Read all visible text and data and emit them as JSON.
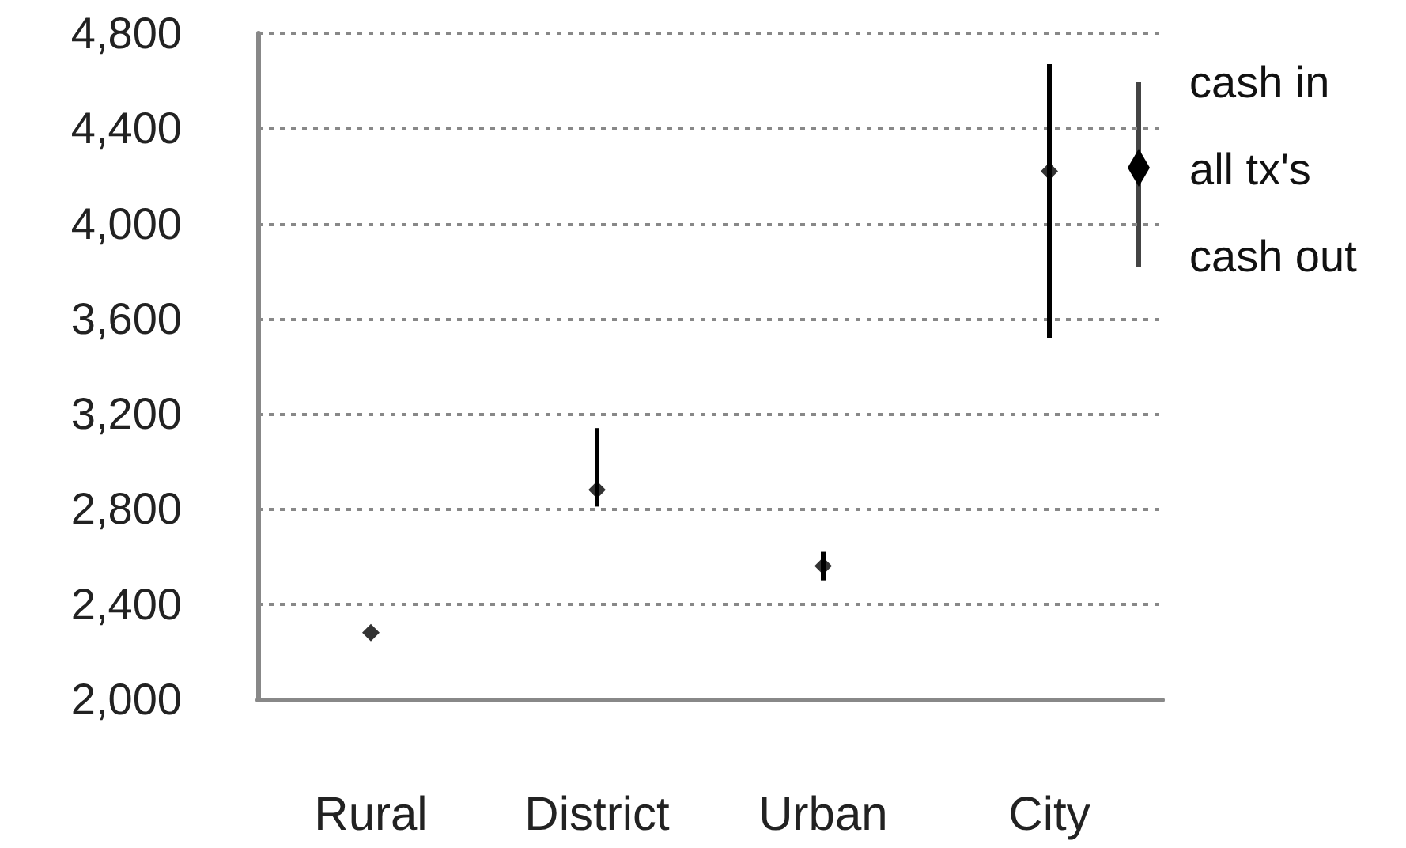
{
  "chart_data": {
    "type": "scatter",
    "categories": [
      "Rural",
      "District",
      "Urban",
      "City"
    ],
    "series": [
      {
        "name": "all tx's",
        "color": "#000000",
        "values": [
          2280,
          2880,
          2560,
          4220
        ],
        "errors": [
          null,
          [
            2810,
            3140
          ],
          [
            2500,
            2620
          ],
          [
            3520,
            4670
          ]
        ]
      }
    ],
    "annotations": [
      "cash in",
      "cash out"
    ],
    "ylim": [
      2000,
      4800
    ],
    "yticks": [
      {
        "value": 2000,
        "label": "2,000"
      },
      {
        "value": 2400,
        "label": "2,400"
      },
      {
        "value": 2800,
        "label": "2,800"
      },
      {
        "value": 3200,
        "label": "3,200"
      },
      {
        "value": 3600,
        "label": "3,600"
      },
      {
        "value": 4000,
        "label": "4,000"
      },
      {
        "value": 4400,
        "label": "4,400"
      },
      {
        "value": 4800,
        "label": "4,800"
      }
    ],
    "grid": "y",
    "legend": "right",
    "marker": "diamond"
  }
}
